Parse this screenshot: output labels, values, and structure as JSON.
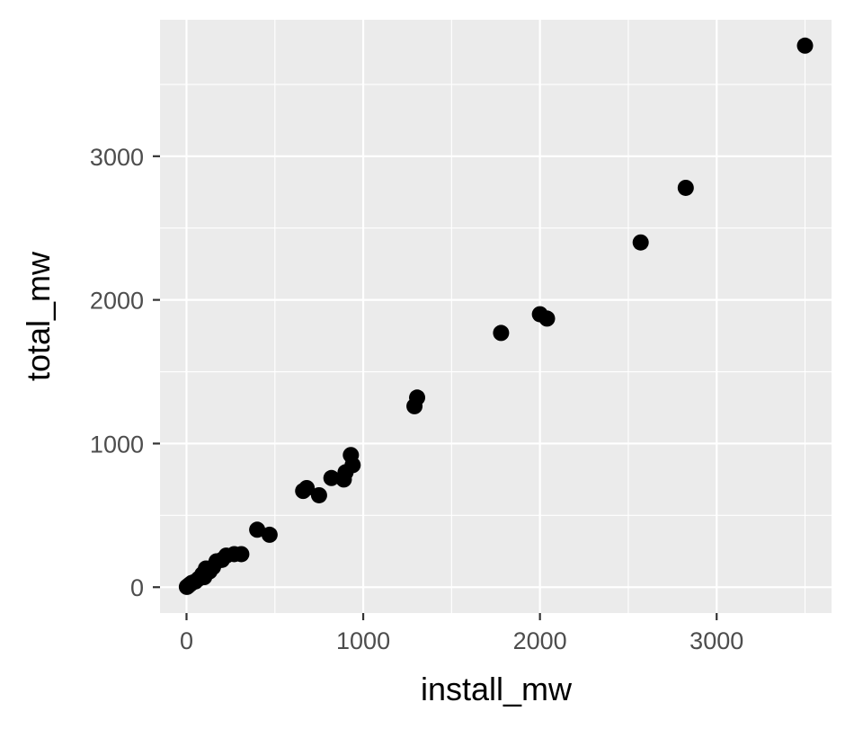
{
  "chart_data": {
    "type": "scatter",
    "title": "",
    "xlabel": "install_mw",
    "ylabel": "total_mw",
    "xlim": [
      -150,
      3650
    ],
    "ylim": [
      -180,
      3950
    ],
    "x_ticks": [
      0,
      1000,
      2000,
      3000
    ],
    "y_ticks": [
      0,
      1000,
      2000,
      3000
    ],
    "x_tick_labels": [
      "0",
      "1000",
      "2000",
      "3000"
    ],
    "y_tick_labels": [
      "0",
      "1000",
      "2000",
      "3000"
    ],
    "grid": true,
    "legend": "none",
    "colors": {
      "panel_background": "#ebebeb",
      "grid_line": "#ffffff",
      "point": "#000000",
      "tick_text": "#4d4d4d",
      "title_text": "#000000"
    },
    "series": [
      {
        "x": [
          3500,
          2825,
          2570,
          2000,
          2040,
          1780,
          1305,
          1290,
          930,
          940,
          900,
          890,
          820,
          750,
          680,
          660,
          470,
          400,
          310,
          270,
          225,
          200,
          170,
          150,
          130,
          110,
          90,
          100,
          70,
          50,
          30,
          20,
          10,
          5,
          2
        ],
        "y": [
          3770,
          2780,
          2400,
          1900,
          1870,
          1770,
          1320,
          1260,
          920,
          850,
          800,
          750,
          760,
          640,
          690,
          670,
          365,
          400,
          230,
          230,
          220,
          190,
          180,
          140,
          110,
          130,
          90,
          70,
          60,
          40,
          30,
          20,
          10,
          5,
          2
        ]
      }
    ]
  }
}
